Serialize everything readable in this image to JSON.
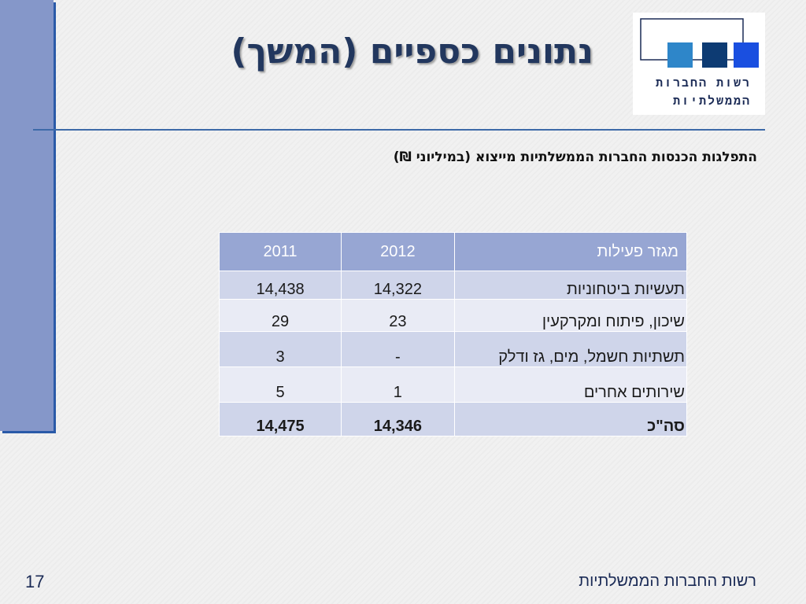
{
  "slide": {
    "title": "נתונים כספיים (המשך)",
    "subtitle": "התפלגות הכנסות החברות הממשלתיות מייצוא (במיליוני ₪)",
    "page_number": "17",
    "footer": "רשות החברות הממשלתיות"
  },
  "logo": {
    "line1": "רשות החברות",
    "line2": "הממשלתיות",
    "colors": [
      "#2e86c9",
      "#0d3b73",
      "#1a4fe0"
    ]
  },
  "table": {
    "headers": {
      "sector": "מגזר פעילות",
      "y2012": "2012",
      "y2011": "2011"
    },
    "rows": [
      {
        "sector": "תעשיות ביטחוניות",
        "y2012": "14,322",
        "y2011": "14,438"
      },
      {
        "sector": "שיכון, פיתוח ומקרקעין",
        "y2012": "23",
        "y2011": "29"
      },
      {
        "sector": "תשתיות חשמל, מים, גז ודלק",
        "y2012": "-",
        "y2011": "3"
      },
      {
        "sector": "שירותים אחרים",
        "y2012": "1",
        "y2011": "5"
      },
      {
        "sector": "סה\"כ",
        "y2012": "14,346",
        "y2011": "14,475"
      }
    ]
  }
}
